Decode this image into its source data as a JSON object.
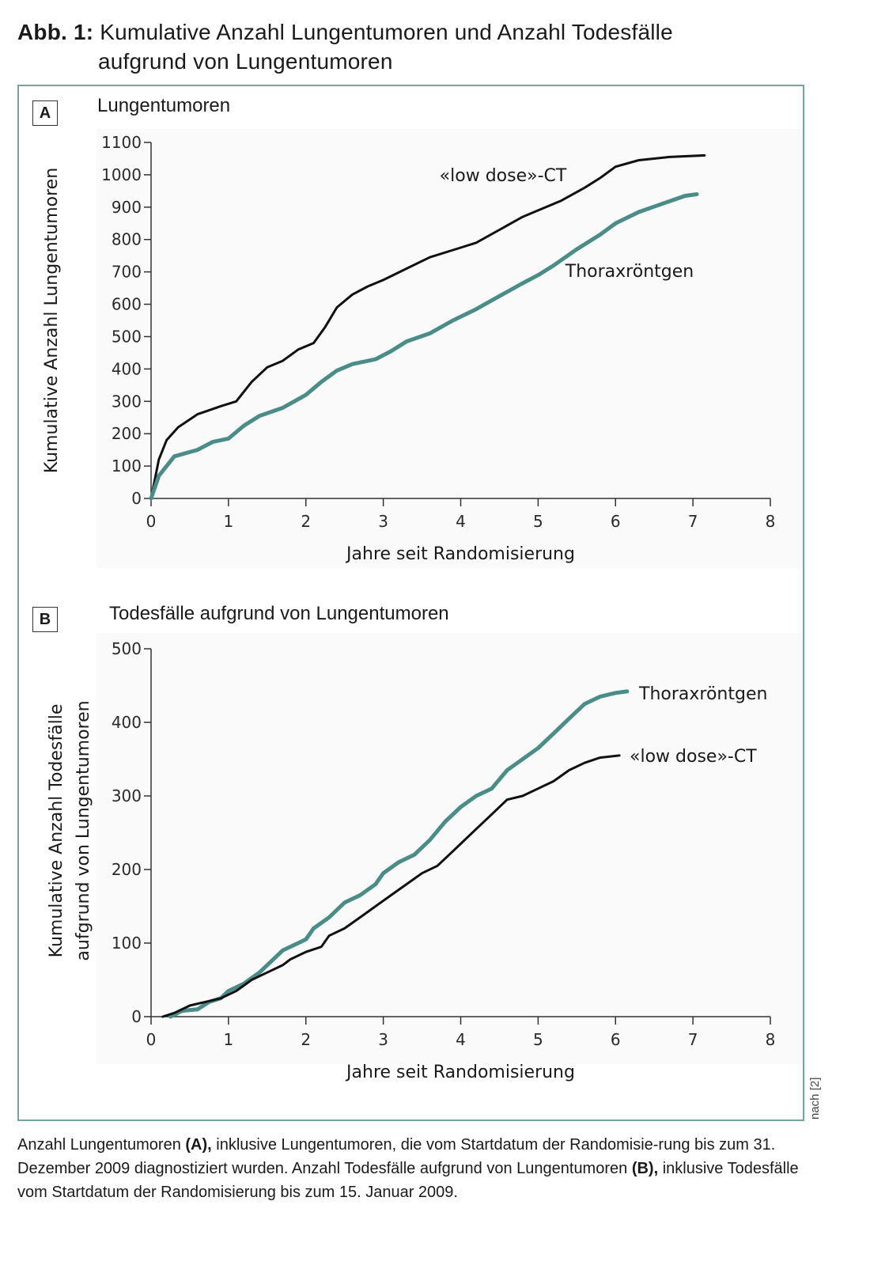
{
  "figure": {
    "label": "Abb. 1:",
    "title_line1": "Kumulative Anzahl Lungentumoren und Anzahl Todesfälle",
    "title_line2": "aufgrund von Lungentumoren",
    "source_note": "nach [2]",
    "caption": {
      "p1": "Anzahl Lungentumoren ",
      "b1": "(A),",
      "p2": " inklusive Lungentumoren, die vom Startdatum der Randomisie-rung bis zum 31. Dezember 2009 diagnostiziert wurden. Anzahl Todesfälle aufgrund von Lungentumoren ",
      "b2": "(B),",
      "p3": " inklusive Todesfälle vom Startdatum der Randomisierung bis zum 15. Januar 2009."
    },
    "colors": {
      "low_dose_ct": "#111111",
      "thoraxroentgen": "#4a8c88",
      "frame": "#6fa6a4"
    }
  },
  "chart_data": [
    {
      "panel": "A",
      "type": "line",
      "title": "Lungentumoren",
      "xlabel": "Jahre seit Randomisierung",
      "ylabel": "Kumulative Anzahl Lungentumoren",
      "xlim": [
        0,
        8
      ],
      "ylim": [
        0,
        1100
      ],
      "xticks": [
        "0",
        "1",
        "2",
        "3",
        "4",
        "5",
        "6",
        "7",
        "8"
      ],
      "yticks": [
        "0",
        "100",
        "200",
        "300",
        "400",
        "500",
        "600",
        "700",
        "800",
        "900",
        "1000",
        "1100"
      ],
      "grid": false,
      "series": [
        {
          "name": "«low dose»-CT",
          "color": "#111111",
          "x": [
            0,
            0.05,
            0.1,
            0.2,
            0.35,
            0.6,
            0.9,
            1.1,
            1.3,
            1.5,
            1.7,
            1.9,
            2.1,
            2.25,
            2.4,
            2.6,
            2.8,
            3.0,
            3.3,
            3.6,
            4.0,
            4.2,
            4.5,
            4.8,
            5.0,
            5.3,
            5.6,
            5.8,
            6.0,
            6.3,
            6.7,
            7.15
          ],
          "y": [
            0,
            60,
            120,
            180,
            220,
            260,
            285,
            300,
            360,
            405,
            425,
            460,
            480,
            530,
            590,
            630,
            655,
            675,
            710,
            745,
            775,
            790,
            830,
            870,
            890,
            920,
            960,
            990,
            1025,
            1045,
            1055,
            1060
          ]
        },
        {
          "name": "Thoraxröntgen",
          "color": "#4a8c88",
          "x": [
            0,
            0.1,
            0.3,
            0.6,
            0.8,
            1.0,
            1.2,
            1.4,
            1.7,
            2.0,
            2.2,
            2.4,
            2.6,
            2.9,
            3.1,
            3.3,
            3.6,
            3.9,
            4.2,
            4.5,
            4.8,
            5.0,
            5.2,
            5.5,
            5.8,
            6.0,
            6.3,
            6.6,
            6.9,
            7.05
          ],
          "y": [
            0,
            70,
            130,
            150,
            175,
            185,
            225,
            255,
            280,
            320,
            360,
            395,
            415,
            430,
            455,
            485,
            510,
            550,
            585,
            625,
            665,
            690,
            720,
            770,
            815,
            850,
            885,
            910,
            935,
            940
          ]
        }
      ]
    },
    {
      "panel": "B",
      "type": "line",
      "title": "Todesfälle aufgrund von Lungentumoren",
      "xlabel": "Jahre seit Randomisierung",
      "ylabel_line1": "Kumulative Anzahl Todesfälle",
      "ylabel_line2": "aufgrund von Lungentumoren",
      "xlim": [
        0,
        8
      ],
      "ylim": [
        0,
        500
      ],
      "xticks": [
        "0",
        "1",
        "2",
        "3",
        "4",
        "5",
        "6",
        "7",
        "8"
      ],
      "yticks": [
        "0",
        "100",
        "200",
        "300",
        "400",
        "500"
      ],
      "grid": false,
      "series": [
        {
          "name": "Thoraxröntgen",
          "color": "#4a8c88",
          "x": [
            0.25,
            0.4,
            0.6,
            0.75,
            0.9,
            1.0,
            1.2,
            1.4,
            1.5,
            1.7,
            2.0,
            2.1,
            2.3,
            2.5,
            2.7,
            2.9,
            3.0,
            3.2,
            3.4,
            3.6,
            3.8,
            4.0,
            4.2,
            4.4,
            4.6,
            4.8,
            5.0,
            5.2,
            5.4,
            5.6,
            5.8,
            6.0,
            6.15
          ],
          "y": [
            0,
            8,
            10,
            20,
            25,
            35,
            45,
            60,
            70,
            90,
            105,
            120,
            135,
            155,
            165,
            180,
            195,
            210,
            220,
            240,
            265,
            285,
            300,
            310,
            335,
            350,
            365,
            385,
            405,
            425,
            435,
            440,
            442
          ]
        },
        {
          "name": "«low dose»-CT",
          "color": "#111111",
          "x": [
            0.15,
            0.3,
            0.5,
            0.7,
            0.9,
            1.1,
            1.3,
            1.5,
            1.7,
            1.8,
            2.0,
            2.2,
            2.3,
            2.5,
            2.7,
            2.9,
            3.1,
            3.3,
            3.5,
            3.7,
            3.9,
            4.0,
            4.2,
            4.4,
            4.6,
            4.8,
            5.0,
            5.2,
            5.4,
            5.6,
            5.8,
            6.05
          ],
          "y": [
            0,
            5,
            15,
            20,
            25,
            35,
            50,
            60,
            70,
            78,
            88,
            95,
            110,
            120,
            135,
            150,
            165,
            180,
            195,
            205,
            225,
            235,
            255,
            275,
            295,
            300,
            310,
            320,
            335,
            345,
            352,
            355
          ]
        }
      ]
    }
  ]
}
